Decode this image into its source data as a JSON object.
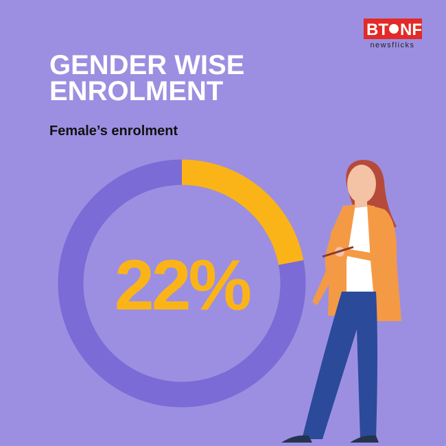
{
  "logo": {
    "left": "BT",
    "right": "NF",
    "tagline": "newsflicks"
  },
  "chart_data": {
    "type": "donut",
    "title": [
      "GENDER WISE",
      "ENROLMENT"
    ],
    "subtitle": "Female’s enrolment",
    "values": [
      22
    ],
    "value_labels": [
      "22%"
    ],
    "ylim": [
      0,
      100
    ],
    "color": "#fbb418",
    "track_color": "#7b6bd6"
  }
}
